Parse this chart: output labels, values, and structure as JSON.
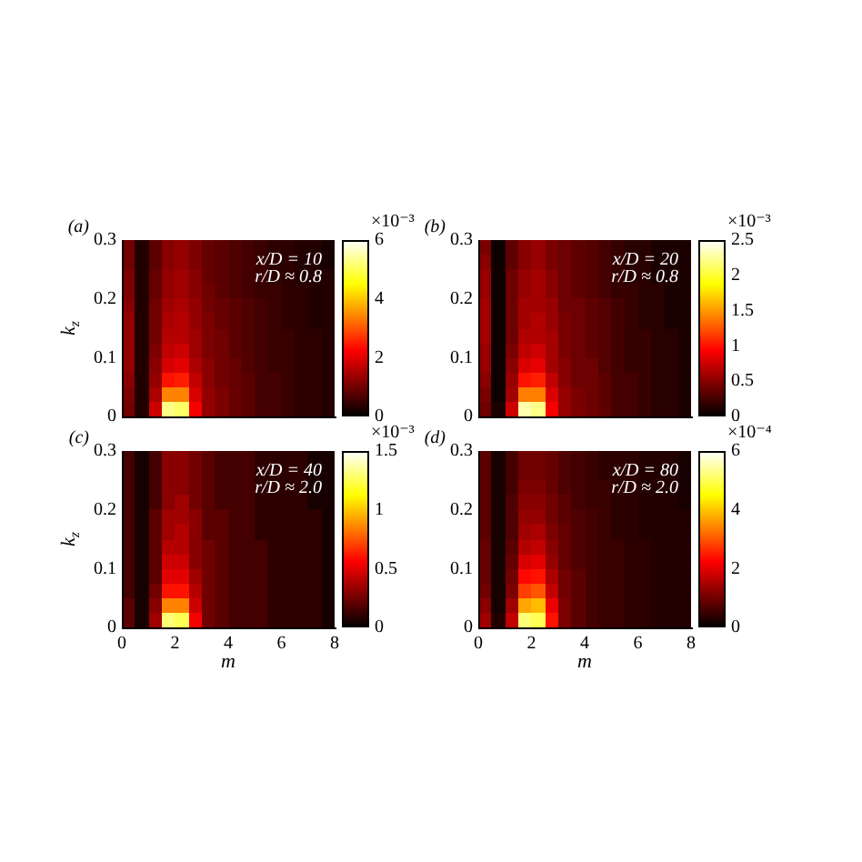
{
  "chart_data": [
    {
      "type": "heatmap",
      "title": "(a)",
      "ylabel": "k$_{z}$",
      "x": [
        0.25,
        0.75,
        1.25,
        1.75,
        2.25,
        2.75,
        3.25,
        3.75,
        4.25,
        4.75,
        5.25,
        5.75,
        6.25,
        6.75,
        7.25,
        7.75
      ],
      "cells": [
        [
          1.0,
          0.3,
          0.8,
          1.2,
          1.3,
          1.1,
          0.9,
          0.8,
          0.7,
          0.6,
          0.5,
          0.4,
          0.4,
          0.3,
          0.3,
          0.2
        ],
        [
          1.0,
          0.3,
          0.8,
          1.2,
          1.3,
          1.1,
          0.9,
          0.8,
          0.7,
          0.6,
          0.5,
          0.4,
          0.4,
          0.3,
          0.3,
          0.2
        ],
        [
          1.1,
          0.3,
          0.9,
          1.3,
          1.4,
          1.2,
          0.9,
          0.8,
          0.7,
          0.6,
          0.5,
          0.4,
          0.4,
          0.3,
          0.3,
          0.3
        ],
        [
          1.1,
          0.3,
          0.9,
          1.3,
          1.4,
          1.2,
          1.0,
          0.8,
          0.7,
          0.6,
          0.5,
          0.5,
          0.4,
          0.4,
          0.3,
          0.3
        ],
        [
          1.2,
          0.3,
          1.0,
          1.4,
          1.5,
          1.3,
          1.0,
          0.9,
          0.8,
          0.7,
          0.6,
          0.5,
          0.4,
          0.4,
          0.3,
          0.3
        ],
        [
          1.3,
          0.3,
          1.0,
          1.5,
          1.6,
          1.3,
          1.1,
          0.9,
          0.8,
          0.7,
          0.6,
          0.5,
          0.4,
          0.4,
          0.3,
          0.3
        ],
        [
          1.3,
          0.3,
          1.0,
          1.6,
          1.6,
          1.4,
          1.1,
          1.0,
          0.8,
          0.7,
          0.6,
          0.5,
          0.5,
          0.4,
          0.4,
          0.3
        ],
        [
          1.3,
          0.3,
          1.1,
          1.7,
          1.8,
          1.4,
          1.1,
          1.0,
          0.8,
          0.7,
          0.6,
          0.5,
          0.5,
          0.4,
          0.4,
          0.3
        ],
        [
          1.3,
          0.3,
          1.2,
          1.9,
          2.0,
          1.5,
          1.2,
          1.0,
          0.9,
          0.7,
          0.6,
          0.5,
          0.5,
          0.4,
          0.4,
          0.3
        ],
        [
          1.2,
          0.3,
          1.3,
          2.4,
          2.5,
          1.7,
          1.2,
          1.0,
          0.9,
          0.8,
          0.6,
          0.6,
          0.5,
          0.4,
          0.4,
          0.3
        ],
        [
          1.1,
          0.3,
          1.5,
          3.4,
          3.4,
          1.9,
          1.3,
          1.1,
          0.9,
          0.8,
          0.6,
          0.6,
          0.5,
          0.4,
          0.4,
          0.3
        ],
        [
          1.0,
          0.3,
          1.8,
          5.3,
          5.1,
          2.2,
          1.3,
          1.1,
          0.9,
          0.8,
          0.6,
          0.6,
          0.5,
          0.4,
          0.4,
          0.3
        ]
      ],
      "clim": [
        0,
        6
      ],
      "cticks": [
        0,
        2,
        4,
        6
      ],
      "clabel": "×10⁻³",
      "xlim": [
        0,
        8
      ],
      "xticks": [
        0,
        2,
        4,
        6,
        8
      ],
      "ylim": [
        0,
        0.3
      ],
      "yticks": [
        0,
        0.1,
        0.2,
        0.3
      ],
      "tick_labels": "y",
      "annotations": [
        "x/D = 10",
        "r/D ≈ 0.8"
      ]
    },
    {
      "type": "heatmap",
      "title": "(b)",
      "x": [
        0.25,
        0.75,
        1.25,
        1.75,
        2.25,
        2.75,
        3.25,
        3.75,
        4.25,
        4.75,
        5.25,
        5.75,
        6.25,
        6.75,
        7.25,
        7.75
      ],
      "cells": [
        [
          0.45,
          0.05,
          0.35,
          0.5,
          0.55,
          0.45,
          0.4,
          0.35,
          0.3,
          0.25,
          0.2,
          0.15,
          0.15,
          0.1,
          0.1,
          0.1
        ],
        [
          0.5,
          0.05,
          0.35,
          0.5,
          0.55,
          0.45,
          0.4,
          0.35,
          0.3,
          0.25,
          0.2,
          0.15,
          0.15,
          0.1,
          0.1,
          0.1
        ],
        [
          0.55,
          0.05,
          0.4,
          0.55,
          0.6,
          0.5,
          0.4,
          0.35,
          0.3,
          0.25,
          0.2,
          0.15,
          0.15,
          0.1,
          0.1,
          0.1
        ],
        [
          0.55,
          0.05,
          0.4,
          0.55,
          0.6,
          0.5,
          0.4,
          0.35,
          0.3,
          0.25,
          0.2,
          0.2,
          0.15,
          0.15,
          0.1,
          0.1
        ],
        [
          0.6,
          0.05,
          0.4,
          0.6,
          0.6,
          0.55,
          0.4,
          0.4,
          0.35,
          0.3,
          0.25,
          0.2,
          0.15,
          0.15,
          0.1,
          0.1
        ],
        [
          0.6,
          0.05,
          0.4,
          0.6,
          0.65,
          0.55,
          0.45,
          0.4,
          0.35,
          0.3,
          0.25,
          0.2,
          0.15,
          0.15,
          0.1,
          0.1
        ],
        [
          0.6,
          0.05,
          0.4,
          0.65,
          0.65,
          0.6,
          0.45,
          0.4,
          0.35,
          0.3,
          0.25,
          0.2,
          0.2,
          0.15,
          0.15,
          0.1
        ],
        [
          0.55,
          0.05,
          0.45,
          0.7,
          0.75,
          0.6,
          0.45,
          0.4,
          0.35,
          0.3,
          0.25,
          0.2,
          0.2,
          0.15,
          0.15,
          0.1
        ],
        [
          0.55,
          0.05,
          0.5,
          0.8,
          0.85,
          0.6,
          0.5,
          0.4,
          0.4,
          0.3,
          0.25,
          0.2,
          0.2,
          0.15,
          0.15,
          0.1
        ],
        [
          0.5,
          0.05,
          0.55,
          1.0,
          1.05,
          0.7,
          0.5,
          0.4,
          0.4,
          0.35,
          0.25,
          0.25,
          0.2,
          0.15,
          0.15,
          0.1
        ],
        [
          0.45,
          0.05,
          0.6,
          1.4,
          1.4,
          0.8,
          0.55,
          0.45,
          0.4,
          0.35,
          0.25,
          0.25,
          0.2,
          0.15,
          0.15,
          0.1
        ],
        [
          0.4,
          0.1,
          0.75,
          2.3,
          2.2,
          0.9,
          0.55,
          0.45,
          0.4,
          0.35,
          0.25,
          0.25,
          0.2,
          0.15,
          0.15,
          0.1
        ]
      ],
      "clim": [
        0,
        2.5
      ],
      "cticks": [
        0,
        0.5,
        1,
        1.5,
        2,
        2.5
      ],
      "clabel": "×10⁻³",
      "xlim": [
        0,
        8
      ],
      "xticks": [
        0,
        2,
        4,
        6,
        8
      ],
      "ylim": [
        0,
        0.3
      ],
      "yticks": [
        0,
        0.1,
        0.2,
        0.3
      ],
      "tick_labels": "y",
      "annotations": [
        "x/D = 20",
        "r/D ≈ 0.8"
      ]
    },
    {
      "type": "heatmap",
      "title": "(c)",
      "xlabel": "m",
      "ylabel": "k$_{z}$",
      "x": [
        0.25,
        0.75,
        1.25,
        1.75,
        2.25,
        2.75,
        3.25,
        3.75,
        4.25,
        4.75,
        5.25,
        5.75,
        6.25,
        6.75,
        7.25,
        7.75
      ],
      "cells": [
        [
          0.15,
          0.05,
          0.15,
          0.3,
          0.3,
          0.25,
          0.2,
          0.15,
          0.15,
          0.15,
          0.1,
          0.1,
          0.1,
          0.1,
          0.05,
          0.05
        ],
        [
          0.15,
          0.05,
          0.15,
          0.3,
          0.3,
          0.25,
          0.2,
          0.15,
          0.15,
          0.15,
          0.1,
          0.1,
          0.1,
          0.1,
          0.05,
          0.05
        ],
        [
          0.15,
          0.05,
          0.15,
          0.3,
          0.3,
          0.25,
          0.2,
          0.15,
          0.15,
          0.15,
          0.1,
          0.1,
          0.1,
          0.1,
          0.05,
          0.05
        ],
        [
          0.15,
          0.05,
          0.15,
          0.3,
          0.35,
          0.25,
          0.2,
          0.15,
          0.15,
          0.15,
          0.1,
          0.1,
          0.1,
          0.1,
          0.05,
          0.05
        ],
        [
          0.15,
          0.05,
          0.2,
          0.35,
          0.35,
          0.3,
          0.2,
          0.2,
          0.15,
          0.15,
          0.1,
          0.1,
          0.1,
          0.1,
          0.1,
          0.05
        ],
        [
          0.15,
          0.05,
          0.2,
          0.35,
          0.4,
          0.3,
          0.2,
          0.2,
          0.15,
          0.15,
          0.1,
          0.1,
          0.1,
          0.1,
          0.1,
          0.05
        ],
        [
          0.15,
          0.05,
          0.2,
          0.4,
          0.4,
          0.3,
          0.25,
          0.2,
          0.15,
          0.15,
          0.15,
          0.1,
          0.1,
          0.1,
          0.1,
          0.05
        ],
        [
          0.15,
          0.05,
          0.2,
          0.45,
          0.45,
          0.3,
          0.25,
          0.2,
          0.15,
          0.15,
          0.15,
          0.1,
          0.1,
          0.1,
          0.1,
          0.05
        ],
        [
          0.15,
          0.05,
          0.2,
          0.5,
          0.5,
          0.35,
          0.25,
          0.2,
          0.15,
          0.15,
          0.15,
          0.1,
          0.1,
          0.1,
          0.1,
          0.05
        ],
        [
          0.15,
          0.05,
          0.25,
          0.6,
          0.6,
          0.4,
          0.25,
          0.2,
          0.15,
          0.15,
          0.15,
          0.1,
          0.1,
          0.1,
          0.1,
          0.05
        ],
        [
          0.2,
          0.05,
          0.3,
          0.85,
          0.85,
          0.45,
          0.25,
          0.2,
          0.15,
          0.15,
          0.15,
          0.1,
          0.1,
          0.1,
          0.1,
          0.05
        ],
        [
          0.2,
          0.05,
          0.35,
          1.3,
          1.25,
          0.55,
          0.25,
          0.2,
          0.15,
          0.15,
          0.15,
          0.1,
          0.1,
          0.1,
          0.1,
          0.05
        ]
      ],
      "clim": [
        0,
        1.5
      ],
      "cticks": [
        0,
        0.5,
        1,
        1.5
      ],
      "clabel": "×10⁻³",
      "xlim": [
        0,
        8
      ],
      "xticks": [
        0,
        2,
        4,
        6,
        8
      ],
      "ylim": [
        0,
        0.3
      ],
      "yticks": [
        0,
        0.1,
        0.2,
        0.3
      ],
      "annotations": [
        "x/D = 40",
        "r/D ≈ 2.0"
      ]
    },
    {
      "type": "heatmap",
      "title": "(d)",
      "xlabel": "m",
      "x": [
        0.25,
        0.75,
        1.25,
        1.75,
        2.25,
        2.75,
        3.25,
        3.75,
        4.25,
        4.75,
        5.25,
        5.75,
        6.25,
        6.75,
        7.25,
        7.75
      ],
      "cells": [
        [
          0.8,
          0.2,
          0.6,
          1.0,
          1.0,
          0.9,
          0.7,
          0.6,
          0.5,
          0.4,
          0.4,
          0.4,
          0.3,
          0.3,
          0.3,
          0.2
        ],
        [
          0.8,
          0.2,
          0.6,
          1.0,
          1.0,
          0.9,
          0.7,
          0.6,
          0.5,
          0.4,
          0.4,
          0.4,
          0.3,
          0.3,
          0.3,
          0.2
        ],
        [
          0.8,
          0.2,
          0.6,
          1.1,
          1.1,
          0.9,
          0.7,
          0.6,
          0.5,
          0.5,
          0.4,
          0.4,
          0.3,
          0.3,
          0.3,
          0.2
        ],
        [
          0.8,
          0.2,
          0.7,
          1.2,
          1.2,
          1.0,
          0.8,
          0.6,
          0.5,
          0.5,
          0.4,
          0.4,
          0.3,
          0.3,
          0.3,
          0.2
        ],
        [
          0.8,
          0.2,
          0.7,
          1.3,
          1.3,
          1.0,
          0.8,
          0.7,
          0.6,
          0.5,
          0.4,
          0.4,
          0.3,
          0.3,
          0.3,
          0.3
        ],
        [
          0.8,
          0.2,
          0.7,
          1.4,
          1.5,
          1.1,
          0.9,
          0.7,
          0.6,
          0.5,
          0.4,
          0.4,
          0.3,
          0.3,
          0.3,
          0.3
        ],
        [
          0.9,
          0.2,
          0.8,
          1.6,
          1.7,
          1.2,
          0.9,
          0.7,
          0.6,
          0.5,
          0.5,
          0.4,
          0.4,
          0.3,
          0.3,
          0.3
        ],
        [
          0.9,
          0.2,
          0.9,
          1.9,
          2.0,
          1.3,
          0.9,
          0.7,
          0.6,
          0.5,
          0.5,
          0.4,
          0.4,
          0.3,
          0.3,
          0.3
        ],
        [
          0.9,
          0.2,
          1.0,
          2.3,
          2.4,
          1.5,
          1.0,
          0.8,
          0.6,
          0.5,
          0.5,
          0.4,
          0.4,
          0.3,
          0.3,
          0.3
        ],
        [
          1.0,
          0.2,
          1.1,
          2.8,
          3.0,
          1.7,
          1.0,
          0.8,
          0.6,
          0.5,
          0.5,
          0.4,
          0.4,
          0.3,
          0.3,
          0.3
        ],
        [
          1.2,
          0.2,
          1.4,
          3.7,
          3.9,
          2.1,
          1.1,
          0.8,
          0.6,
          0.5,
          0.5,
          0.4,
          0.4,
          0.3,
          0.3,
          0.3
        ],
        [
          1.4,
          0.3,
          1.7,
          5.2,
          5.0,
          2.4,
          1.1,
          0.8,
          0.6,
          0.5,
          0.5,
          0.4,
          0.4,
          0.3,
          0.3,
          0.3
        ]
      ],
      "clim": [
        0,
        6
      ],
      "cticks": [
        0,
        2,
        4,
        6
      ],
      "clabel": "×10⁻⁴",
      "xlim": [
        0,
        8
      ],
      "xticks": [
        0,
        2,
        4,
        6,
        8
      ],
      "ylim": [
        0,
        0.3
      ],
      "yticks": [
        0,
        0.1,
        0.2,
        0.3
      ],
      "annotations": [
        "x/D = 80",
        "r/D ≈ 2.0"
      ]
    }
  ]
}
